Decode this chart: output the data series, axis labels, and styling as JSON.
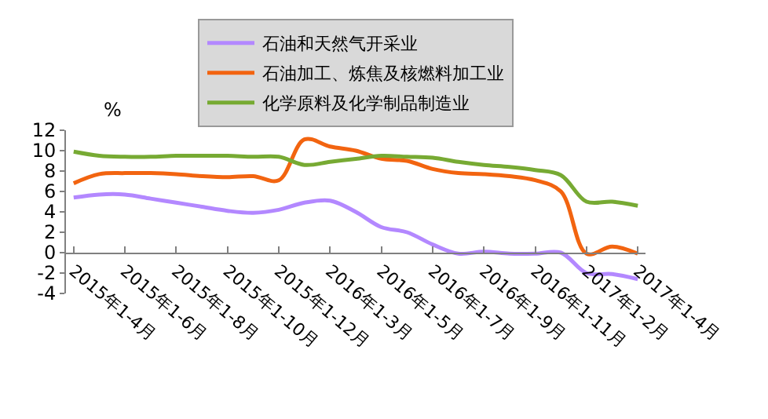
{
  "chart_data": {
    "type": "line",
    "ylabel": "%",
    "categories": [
      "2015年1-4月",
      null,
      "2015年1-6月",
      null,
      "2015年1-8月",
      null,
      "2015年1-10月",
      null,
      "2015年1-12月",
      null,
      "2016年1-3月",
      null,
      "2016年1-5月",
      null,
      "2016年1-7月",
      null,
      "2016年1-9月",
      null,
      "2016年1-11月",
      null,
      "2017年1-2月",
      null,
      "2017年1-4月"
    ],
    "series": [
      {
        "name": "石油和天然气开采业",
        "color": "#b388ff",
        "values": [
          5.4,
          5.7,
          5.7,
          5.3,
          4.9,
          4.5,
          4.1,
          3.9,
          4.2,
          4.9,
          5.1,
          4.0,
          2.5,
          2.0,
          0.8,
          -0.1,
          0.1,
          -0.1,
          -0.1,
          0.0,
          -2.0,
          -2.1,
          -2.6
        ]
      },
      {
        "name": "石油加工、炼焦及核燃料加工业",
        "color": "#f26410",
        "values": [
          6.8,
          7.7,
          7.8,
          7.8,
          7.7,
          7.5,
          7.4,
          7.5,
          7.1,
          11.1,
          10.4,
          10.0,
          9.2,
          9.0,
          8.2,
          7.8,
          7.7,
          7.5,
          7.1,
          6.0,
          -0.1,
          0.6,
          -0.1
        ]
      },
      {
        "name": "化学原料及化学制品制造业",
        "color": "#77aa33",
        "values": [
          9.9,
          9.5,
          9.4,
          9.4,
          9.5,
          9.5,
          9.5,
          9.4,
          9.4,
          8.6,
          8.9,
          9.2,
          9.5,
          9.4,
          9.3,
          8.9,
          8.6,
          8.4,
          8.1,
          7.6,
          5.0,
          5.0,
          4.6
        ]
      }
    ],
    "ylim": [
      -4,
      12
    ],
    "yticks": [
      -4,
      -2,
      0,
      2,
      4,
      6,
      8,
      10,
      12
    ],
    "grid": false,
    "legend": "top",
    "marker": "none",
    "line_style": "solid"
  }
}
